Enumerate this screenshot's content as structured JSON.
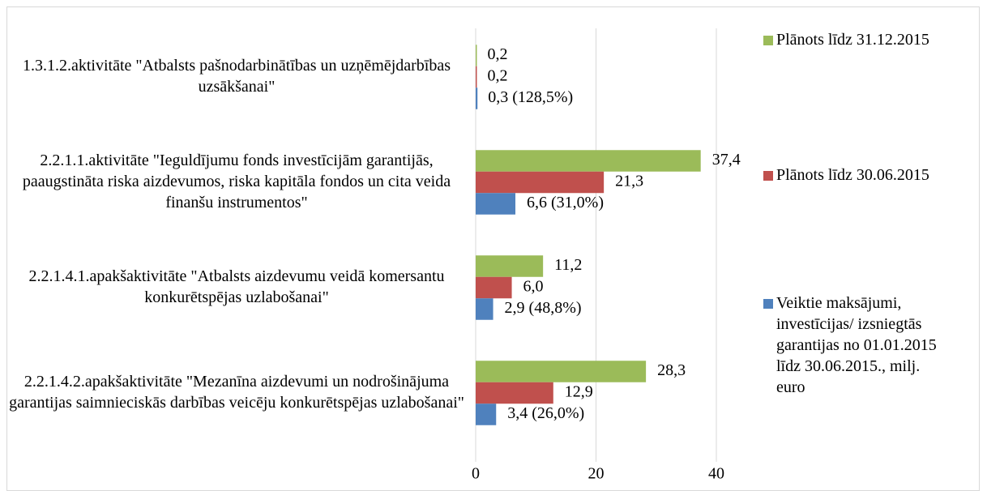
{
  "chart_data": {
    "type": "bar",
    "orientation": "horizontal",
    "categories": [
      "1.3.1.2.aktivitāte \"Atbalsts pašnodarbinātības un uzņēmējdarbības uzsākšanai\"",
      "2.2.1.1.aktivitāte \"Ieguldījumu fonds investīcijām garantijās, paaugstināta riska aizdevumos, riska kapitāla fondos un cita veida finanšu instrumentos\"",
      "2.2.1.4.1.apakšaktivitāte \"Atbalsts aizdevumu veidā komersantu konkurētspējas uzlabošanai\"",
      "2.2.1.4.2.apakšaktivitāte \"Mezanīna aizdevumi un nodrošinājuma garantijas saimnieciskās darbības veicēju konkurētspējas uzlabošanai\""
    ],
    "series": [
      {
        "name": "Plānots līdz 31.12.2015",
        "color": "#9bbb59",
        "values": [
          0.2,
          37.4,
          11.2,
          28.3
        ],
        "value_labels": [
          "0,2",
          "37,4",
          "11,2",
          "28,3"
        ]
      },
      {
        "name": "Plānots līdz 30.06.2015",
        "color": "#c0504d",
        "values": [
          0.2,
          21.3,
          6.0,
          12.9
        ],
        "value_labels": [
          "0,2",
          "21,3",
          "6,0",
          "12,9"
        ]
      },
      {
        "name": "Veiktie maksājumi, investīcijas/ izsniegtās garantijas no 01.01.2015 līdz 30.06.2015., milj. euro",
        "color": "#4f81bd",
        "values": [
          0.3,
          6.6,
          2.9,
          3.4
        ],
        "value_labels": [
          "0,3 (128,5%)",
          "6,6 (31,0%)",
          "2,9 (48,8%)",
          "3,4 (26,0%)"
        ]
      }
    ],
    "xlim": [
      0,
      40
    ],
    "xticks": [
      0,
      20,
      40
    ],
    "grid": true,
    "legend": "right"
  }
}
